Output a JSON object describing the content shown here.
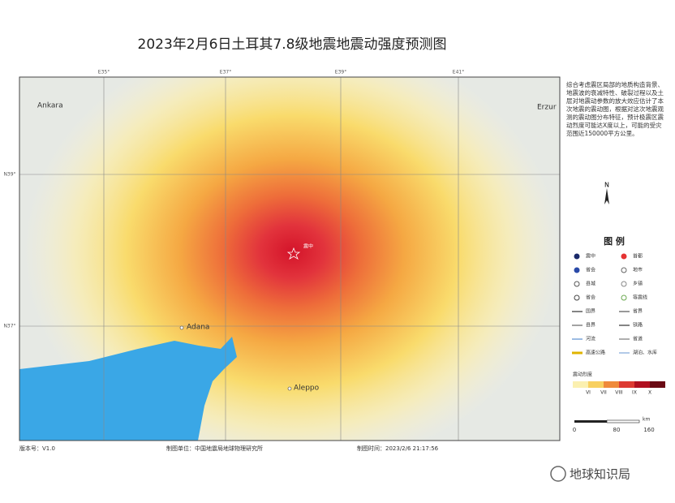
{
  "title": "2023年2月6日土耳其7.8级地震地震动强度预测图",
  "map": {
    "grid_labels": [
      "E35°",
      "E37°",
      "E39°",
      "E41°",
      "N39°",
      "N37°"
    ],
    "places": [
      "Ankara",
      "Erzur",
      "Adana",
      "Aleppo"
    ],
    "epicenter_label": "震中"
  },
  "description": "综合考虑震区局部的地质构造背景、地震波的衰减特性、破裂过程以及土层对地震动参数的放大效应估计了本次地震的震动图，根据对这次地震观测的震动图分布特征，预计极震区震动烈度可能达X度以上，可能的受灾范围近150000平方公里。",
  "north": "N",
  "legend": {
    "title": "图 例",
    "items": [
      "震中",
      "首都",
      "省会",
      "地市",
      "县城",
      "乡镇",
      "省会",
      "等震线",
      "国界",
      "省界",
      "县界",
      "铁路",
      "河流",
      "省道",
      "高速公路",
      "湖泊、水库"
    ],
    "intensity_title": "震动烈度",
    "intensity_labels": [
      "VI",
      "VII",
      "VIII",
      "IX",
      "X"
    ],
    "scale": [
      0,
      80,
      160
    ],
    "scale_unit": "km"
  },
  "footer": {
    "version": "版本号：V1.0",
    "maker": "制图单位：中国地震局地球物理研究所",
    "time": "制图时间：2023/2/6 21:17:56"
  },
  "watermark": "地球知识局"
}
